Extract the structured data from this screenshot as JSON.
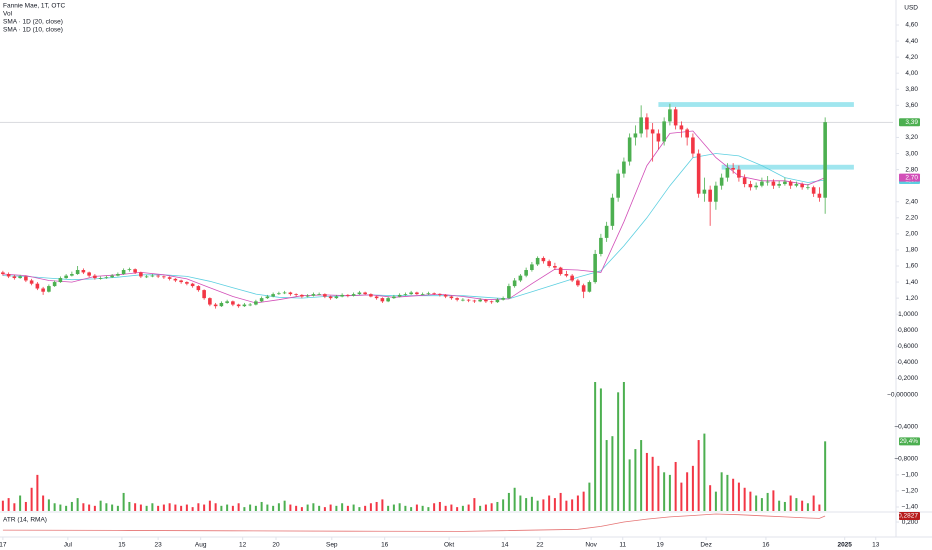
{
  "chart_data": {
    "type": "candlestick",
    "title": "Fannie Mae, 1T, OTC",
    "currency": "USD",
    "up_color": "#4caf50",
    "down_color": "#f23645",
    "grid": false,
    "candles": [
      [
        1.52,
        1.54,
        1.48,
        1.5
      ],
      [
        1.5,
        1.52,
        1.45,
        1.47
      ],
      [
        1.47,
        1.49,
        1.43,
        1.45
      ],
      [
        1.45,
        1.49,
        1.44,
        1.47
      ],
      [
        1.47,
        1.48,
        1.4,
        1.42
      ],
      [
        1.42,
        1.44,
        1.36,
        1.38
      ],
      [
        1.38,
        1.4,
        1.3,
        1.32
      ],
      [
        1.32,
        1.34,
        1.24,
        1.28
      ],
      [
        1.28,
        1.37,
        1.27,
        1.35
      ],
      [
        1.35,
        1.42,
        1.34,
        1.4
      ],
      [
        1.4,
        1.47,
        1.39,
        1.45
      ],
      [
        1.45,
        1.5,
        1.44,
        1.48
      ],
      [
        1.48,
        1.53,
        1.47,
        1.5
      ],
      [
        1.5,
        1.6,
        1.49,
        1.55
      ],
      [
        1.55,
        1.57,
        1.5,
        1.52
      ],
      [
        1.52,
        1.53,
        1.46,
        1.48
      ],
      [
        1.48,
        1.5,
        1.43,
        1.45
      ],
      [
        1.45,
        1.47,
        1.43,
        1.45
      ],
      [
        1.45,
        1.48,
        1.44,
        1.46
      ],
      [
        1.46,
        1.5,
        1.45,
        1.48
      ],
      [
        1.48,
        1.52,
        1.47,
        1.5
      ],
      [
        1.5,
        1.57,
        1.49,
        1.55
      ],
      [
        1.55,
        1.58,
        1.53,
        1.56
      ],
      [
        1.56,
        1.57,
        1.5,
        1.52
      ],
      [
        1.52,
        1.53,
        1.45,
        1.47
      ],
      [
        1.47,
        1.49,
        1.45,
        1.47
      ],
      [
        1.47,
        1.5,
        1.46,
        1.48
      ],
      [
        1.48,
        1.49,
        1.45,
        1.47
      ],
      [
        1.47,
        1.48,
        1.44,
        1.46
      ],
      [
        1.46,
        1.47,
        1.42,
        1.44
      ],
      [
        1.44,
        1.45,
        1.4,
        1.42
      ],
      [
        1.42,
        1.43,
        1.38,
        1.4
      ],
      [
        1.4,
        1.41,
        1.36,
        1.38
      ],
      [
        1.38,
        1.39,
        1.33,
        1.35
      ],
      [
        1.35,
        1.36,
        1.28,
        1.3
      ],
      [
        1.3,
        1.31,
        1.18,
        1.2
      ],
      [
        1.2,
        1.21,
        1.1,
        1.12
      ],
      [
        1.12,
        1.14,
        1.07,
        1.1
      ],
      [
        1.1,
        1.16,
        1.09,
        1.14
      ],
      [
        1.14,
        1.18,
        1.13,
        1.16
      ],
      [
        1.16,
        1.17,
        1.1,
        1.12
      ],
      [
        1.12,
        1.13,
        1.08,
        1.1
      ],
      [
        1.1,
        1.14,
        1.09,
        1.12
      ],
      [
        1.12,
        1.14,
        1.1,
        1.12
      ],
      [
        1.12,
        1.18,
        1.11,
        1.16
      ],
      [
        1.16,
        1.22,
        1.15,
        1.2
      ],
      [
        1.2,
        1.24,
        1.19,
        1.22
      ],
      [
        1.22,
        1.27,
        1.21,
        1.25
      ],
      [
        1.25,
        1.28,
        1.24,
        1.26
      ],
      [
        1.26,
        1.29,
        1.25,
        1.27
      ],
      [
        1.27,
        1.28,
        1.23,
        1.25
      ],
      [
        1.25,
        1.26,
        1.22,
        1.24
      ],
      [
        1.24,
        1.25,
        1.2,
        1.22
      ],
      [
        1.22,
        1.25,
        1.21,
        1.23
      ],
      [
        1.23,
        1.27,
        1.22,
        1.25
      ],
      [
        1.25,
        1.27,
        1.24,
        1.25
      ],
      [
        1.25,
        1.26,
        1.2,
        1.22
      ],
      [
        1.22,
        1.23,
        1.18,
        1.2
      ],
      [
        1.2,
        1.24,
        1.19,
        1.22
      ],
      [
        1.22,
        1.26,
        1.21,
        1.24
      ],
      [
        1.24,
        1.25,
        1.21,
        1.23
      ],
      [
        1.23,
        1.27,
        1.22,
        1.25
      ],
      [
        1.25,
        1.29,
        1.24,
        1.27
      ],
      [
        1.27,
        1.28,
        1.24,
        1.25
      ],
      [
        1.25,
        1.26,
        1.21,
        1.22
      ],
      [
        1.22,
        1.23,
        1.18,
        1.2
      ],
      [
        1.2,
        1.21,
        1.14,
        1.16
      ],
      [
        1.16,
        1.22,
        1.15,
        1.2
      ],
      [
        1.2,
        1.24,
        1.19,
        1.22
      ],
      [
        1.22,
        1.26,
        1.21,
        1.24
      ],
      [
        1.24,
        1.27,
        1.23,
        1.25
      ],
      [
        1.25,
        1.29,
        1.24,
        1.27
      ],
      [
        1.27,
        1.28,
        1.24,
        1.25
      ],
      [
        1.25,
        1.27,
        1.24,
        1.25
      ],
      [
        1.25,
        1.28,
        1.24,
        1.26
      ],
      [
        1.26,
        1.27,
        1.24,
        1.25
      ],
      [
        1.25,
        1.26,
        1.22,
        1.24
      ],
      [
        1.24,
        1.25,
        1.2,
        1.22
      ],
      [
        1.22,
        1.23,
        1.18,
        1.2
      ],
      [
        1.2,
        1.21,
        1.16,
        1.18
      ],
      [
        1.18,
        1.2,
        1.16,
        1.18
      ],
      [
        1.18,
        1.19,
        1.15,
        1.17
      ],
      [
        1.17,
        1.18,
        1.14,
        1.16
      ],
      [
        1.16,
        1.2,
        1.15,
        1.18
      ],
      [
        1.18,
        1.19,
        1.14,
        1.16
      ],
      [
        1.16,
        1.17,
        1.13,
        1.15
      ],
      [
        1.15,
        1.2,
        1.14,
        1.18
      ],
      [
        1.18,
        1.22,
        1.17,
        1.2
      ],
      [
        1.2,
        1.38,
        1.19,
        1.35
      ],
      [
        1.35,
        1.45,
        1.33,
        1.42
      ],
      [
        1.42,
        1.5,
        1.4,
        1.48
      ],
      [
        1.48,
        1.58,
        1.46,
        1.55
      ],
      [
        1.55,
        1.65,
        1.53,
        1.62
      ],
      [
        1.62,
        1.72,
        1.6,
        1.7
      ],
      [
        1.7,
        1.72,
        1.63,
        1.66
      ],
      [
        1.66,
        1.68,
        1.58,
        1.6
      ],
      [
        1.6,
        1.64,
        1.55,
        1.58
      ],
      [
        1.58,
        1.59,
        1.48,
        1.5
      ],
      [
        1.5,
        1.54,
        1.46,
        1.48
      ],
      [
        1.48,
        1.5,
        1.4,
        1.42
      ],
      [
        1.42,
        1.44,
        1.34,
        1.36
      ],
      [
        1.36,
        1.38,
        1.2,
        1.28
      ],
      [
        1.28,
        1.42,
        1.27,
        1.4
      ],
      [
        1.4,
        1.8,
        1.38,
        1.75
      ],
      [
        1.75,
        2.0,
        1.72,
        1.95
      ],
      [
        1.95,
        2.15,
        1.9,
        2.1
      ],
      [
        2.1,
        2.5,
        2.05,
        2.45
      ],
      [
        2.45,
        2.8,
        2.4,
        2.75
      ],
      [
        2.75,
        2.95,
        2.7,
        2.9
      ],
      [
        2.9,
        3.25,
        2.85,
        3.2
      ],
      [
        3.2,
        3.35,
        3.1,
        3.25
      ],
      [
        3.25,
        3.6,
        3.2,
        3.45
      ],
      [
        3.45,
        3.5,
        3.2,
        3.3
      ],
      [
        3.3,
        3.38,
        2.9,
        3.25
      ],
      [
        3.25,
        3.3,
        3.05,
        3.15
      ],
      [
        3.15,
        3.45,
        3.1,
        3.4
      ],
      [
        3.4,
        3.62,
        3.35,
        3.55
      ],
      [
        3.55,
        3.58,
        3.3,
        3.35
      ],
      [
        3.35,
        3.4,
        3.2,
        3.3
      ],
      [
        3.3,
        3.32,
        3.1,
        3.2
      ],
      [
        3.2,
        3.25,
        2.95,
        3.0
      ],
      [
        3.0,
        3.05,
        2.45,
        2.5
      ],
      [
        2.5,
        2.7,
        2.4,
        2.55
      ],
      [
        2.55,
        2.6,
        2.1,
        2.4
      ],
      [
        2.4,
        2.65,
        2.3,
        2.6
      ],
      [
        2.6,
        2.75,
        2.55,
        2.7
      ],
      [
        2.7,
        2.88,
        2.65,
        2.82
      ],
      [
        2.82,
        2.88,
        2.75,
        2.8
      ],
      [
        2.8,
        2.85,
        2.65,
        2.7
      ],
      [
        2.7,
        2.74,
        2.58,
        2.62
      ],
      [
        2.62,
        2.66,
        2.54,
        2.58
      ],
      [
        2.58,
        2.64,
        2.55,
        2.6
      ],
      [
        2.6,
        2.7,
        2.58,
        2.65
      ],
      [
        2.65,
        2.72,
        2.6,
        2.65
      ],
      [
        2.65,
        2.68,
        2.56,
        2.6
      ],
      [
        2.6,
        2.66,
        2.57,
        2.62
      ],
      [
        2.62,
        2.7,
        2.6,
        2.65
      ],
      [
        2.65,
        2.67,
        2.56,
        2.6
      ],
      [
        2.6,
        2.65,
        2.58,
        2.62
      ],
      [
        2.62,
        2.64,
        2.55,
        2.58
      ],
      [
        2.58,
        2.62,
        2.55,
        2.58
      ],
      [
        2.58,
        2.6,
        2.46,
        2.5
      ],
      [
        2.5,
        2.58,
        2.4,
        2.45
      ],
      [
        2.45,
        3.45,
        2.25,
        3.39
      ]
    ],
    "last_label": "3,39",
    "xlim": [
      -0.5,
      154.8
    ],
    "xticks": [
      {
        "value": 0,
        "label": "17"
      },
      {
        "value": 11.3,
        "label": "Jul"
      },
      {
        "value": 20.7,
        "label": "15"
      },
      {
        "value": 27,
        "label": "23"
      },
      {
        "value": 34.4,
        "label": "Aug"
      },
      {
        "value": 41.7,
        "label": "12"
      },
      {
        "value": 47.5,
        "label": "20"
      },
      {
        "value": 57.2,
        "label": "Sep"
      },
      {
        "value": 66.4,
        "label": "16"
      },
      {
        "value": 77.6,
        "label": "Okt"
      },
      {
        "value": 87.3,
        "label": "14"
      },
      {
        "value": 93.4,
        "label": "22"
      },
      {
        "value": 102.3,
        "label": "Nov"
      },
      {
        "value": 107.8,
        "label": "11"
      },
      {
        "value": 114.3,
        "label": "19"
      },
      {
        "value": 122.3,
        "label": "Dez"
      },
      {
        "value": 132.7,
        "label": "16"
      },
      {
        "value": 146.4,
        "label": "2025"
      },
      {
        "value": 151.8,
        "label": "13"
      }
    ],
    "ylim": [
      -1.4,
      4.6
    ],
    "yticks": [
      {
        "value": 4.6,
        "label": "4,60"
      },
      {
        "value": 4.4,
        "label": "4,40"
      },
      {
        "value": 4.2,
        "label": "4,20"
      },
      {
        "value": 4.0,
        "label": "4,00"
      },
      {
        "value": 3.8,
        "label": "3,80"
      },
      {
        "value": 3.6,
        "label": "3,60"
      },
      {
        "value": 3.2,
        "label": "3,20"
      },
      {
        "value": 3.0,
        "label": "3,00"
      },
      {
        "value": 2.8,
        "label": "2,80"
      },
      {
        "value": 2.4,
        "label": "2,40"
      },
      {
        "value": 2.2,
        "label": "2,20"
      },
      {
        "value": 2.0,
        "label": "2,00"
      },
      {
        "value": 1.8,
        "label": "1,80"
      },
      {
        "value": 1.6,
        "label": "1,60"
      },
      {
        "value": 1.4,
        "label": "1,40"
      },
      {
        "value": 1.2,
        "label": "1,20"
      },
      {
        "value": 1.0,
        "label": "1,0000"
      },
      {
        "value": 0.8,
        "label": "0,8000"
      },
      {
        "value": 0.6,
        "label": "0,6000"
      },
      {
        "value": 0.4,
        "label": "0,4000"
      },
      {
        "value": 0.2,
        "label": "0,2000"
      },
      {
        "value": 0,
        "label": "−0,000000"
      },
      {
        "value": -0.4,
        "label": "−0,4000"
      },
      {
        "value": -0.8,
        "label": "−0,8000"
      },
      {
        "value": -1.0,
        "label": "−1,00"
      },
      {
        "value": -1.2,
        "label": "−1,20"
      },
      {
        "value": -1.4,
        "label": "−1,40"
      }
    ],
    "zones": [
      {
        "x0": 114,
        "x1": 148,
        "y0": 3.58,
        "y1": 3.64
      },
      {
        "x0": 125,
        "x1": 148,
        "y0": 2.8,
        "y1": 2.86
      }
    ],
    "zone_color": "#80deea",
    "series": [
      {
        "name": "SMA · 1D (20, close)",
        "color": "#5ccfe0",
        "last_label": "2,67",
        "x": [
          0,
          4,
          8,
          12,
          16,
          20,
          24,
          28,
          32,
          36,
          40,
          44,
          48,
          52,
          56,
          60,
          64,
          68,
          72,
          76,
          80,
          84,
          88,
          92,
          96,
          100,
          104,
          108,
          112,
          116,
          120,
          124,
          128,
          132,
          136,
          140,
          143
        ],
        "values": [
          1.48,
          1.47,
          1.45,
          1.43,
          1.44,
          1.46,
          1.49,
          1.49,
          1.47,
          1.41,
          1.33,
          1.25,
          1.21,
          1.2,
          1.22,
          1.23,
          1.24,
          1.23,
          1.23,
          1.23,
          1.23,
          1.21,
          1.19,
          1.28,
          1.37,
          1.46,
          1.54,
          1.85,
          2.2,
          2.6,
          2.95,
          3.0,
          2.97,
          2.85,
          2.7,
          2.64,
          2.67
        ]
      },
      {
        "name": "SMA · 1D (10, close)",
        "color": "#d24fb8",
        "last_label": "2,70",
        "x": [
          0,
          4,
          8,
          12,
          16,
          20,
          24,
          28,
          32,
          36,
          40,
          44,
          48,
          52,
          56,
          60,
          64,
          68,
          72,
          76,
          80,
          84,
          88,
          92,
          96,
          100,
          104,
          108,
          112,
          116,
          120,
          124,
          128,
          132,
          136,
          140,
          143
        ],
        "values": [
          1.5,
          1.48,
          1.42,
          1.4,
          1.47,
          1.49,
          1.52,
          1.49,
          1.44,
          1.33,
          1.22,
          1.14,
          1.18,
          1.23,
          1.24,
          1.23,
          1.24,
          1.21,
          1.23,
          1.25,
          1.22,
          1.18,
          1.19,
          1.38,
          1.56,
          1.55,
          1.52,
          2.15,
          2.85,
          3.25,
          3.28,
          2.95,
          2.72,
          2.66,
          2.66,
          2.61,
          2.7
        ]
      }
    ],
    "volume": {
      "name": "Vol",
      "ylim": [
        0,
        100
      ],
      "last_label": "29,4%",
      "values": [
        8,
        10,
        6,
        12,
        7,
        18,
        28,
        12,
        9,
        6,
        5,
        4,
        7,
        10,
        6,
        5,
        4,
        8,
        6,
        5,
        4,
        14,
        7,
        6,
        5,
        4,
        6,
        4,
        5,
        6,
        5,
        4,
        5,
        3,
        6,
        5,
        8,
        6,
        4,
        5,
        4,
        6,
        3,
        5,
        4,
        7,
        5,
        4,
        6,
        8,
        5,
        4,
        3,
        5,
        6,
        4,
        3,
        5,
        4,
        6,
        4,
        5,
        3,
        4,
        6,
        7,
        9,
        4,
        5,
        6,
        4,
        3,
        5,
        4,
        3,
        6,
        7,
        4,
        5,
        3,
        4,
        5,
        10,
        4,
        5,
        6,
        7,
        9,
        14,
        18,
        12,
        10,
        11,
        8,
        9,
        12,
        10,
        14,
        8,
        9,
        12,
        15,
        22,
        100,
        95,
        55,
        58,
        92,
        100,
        40,
        48,
        55,
        45,
        42,
        35,
        30,
        28,
        38,
        22,
        30,
        35,
        55,
        60,
        20,
        15,
        30,
        28,
        25,
        22,
        18,
        15,
        12,
        10,
        14,
        16,
        8,
        7,
        12,
        10,
        8,
        6,
        12,
        5,
        54
      ]
    },
    "atr": {
      "name": "ATR (14, RMA)",
      "color": "#e57373",
      "ylim": [
        0.05,
        0.31
      ],
      "last_label": "0,2827",
      "yticks": [
        {
          "value": 0.2,
          "label": "0,200"
        }
      ],
      "x": [
        0,
        20,
        40,
        60,
        80,
        100,
        104,
        108,
        112,
        116,
        120,
        124,
        128,
        132,
        136,
        140,
        142,
        143
      ],
      "values": [
        0.09,
        0.085,
        0.08,
        0.075,
        0.072,
        0.1,
        0.14,
        0.2,
        0.24,
        0.27,
        0.29,
        0.31,
        0.3,
        0.285,
        0.27,
        0.255,
        0.25,
        0.2827
      ]
    }
  }
}
